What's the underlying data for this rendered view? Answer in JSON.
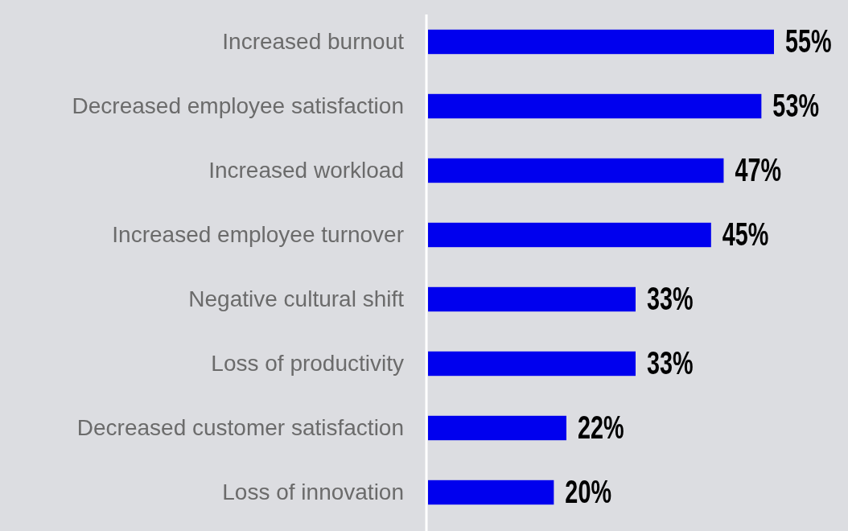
{
  "chart_data": {
    "type": "bar",
    "orientation": "horizontal",
    "categories": [
      "Increased burnout",
      "Decreased employee satisfaction",
      "Increased workload",
      "Increased employee turnover",
      "Negative cultural shift",
      "Loss of productivity",
      "Decreased customer satisfaction",
      "Loss of innovation"
    ],
    "values": [
      55,
      53,
      47,
      45,
      33,
      33,
      22,
      20
    ],
    "value_labels": [
      "55%",
      "53%",
      "47%",
      "45%",
      "33%",
      "33%",
      "22%",
      "20%"
    ],
    "color": "#0000ee"
  }
}
